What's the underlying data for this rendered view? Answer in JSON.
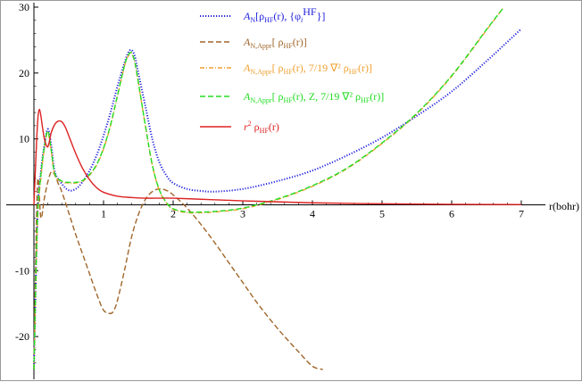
{
  "chart_data": {
    "type": "line",
    "title": "",
    "xlabel": "r(bohr)",
    "ylabel": "",
    "xlim": [
      0,
      7
    ],
    "ylim": [
      -25,
      30
    ],
    "xticks": [
      1,
      2,
      3,
      4,
      5,
      6,
      7
    ],
    "yticks": [
      -20,
      -10,
      10,
      20,
      30
    ],
    "grid": false,
    "legend_position": "top-center",
    "series": [
      {
        "name": "A_N[ρ_HF(r), {φ_i^HF}]",
        "legend_main": "A",
        "legend_sub": "N",
        "legend_rest": "[ρ",
        "legend_sub2": "HF",
        "legend_tail": "(r), {φ",
        "legend_tail2": "i",
        "legend_sup": "HF",
        "legend_end": "}]",
        "color": "#2222dd",
        "dash": "dotted",
        "x": [
          0.0,
          0.05,
          0.1,
          0.15,
          0.2,
          0.25,
          0.3,
          0.4,
          0.5,
          0.6,
          0.7,
          0.8,
          0.9,
          1.0,
          1.1,
          1.2,
          1.3,
          1.35,
          1.4,
          1.45,
          1.5,
          1.6,
          1.7,
          1.8,
          1.9,
          2.0,
          2.2,
          2.4,
          2.6,
          3.0,
          3.5,
          4.0,
          4.5,
          5.0,
          5.5,
          6.0,
          6.5,
          7.0
        ],
        "y": [
          -25,
          -2,
          5,
          9,
          11.5,
          9,
          5,
          3.2,
          2.2,
          2.4,
          3.5,
          5.2,
          7.5,
          10.5,
          14,
          18,
          21.5,
          23,
          23.5,
          22.5,
          20,
          15,
          10,
          6.5,
          4.5,
          3.3,
          2.4,
          2.1,
          2.0,
          2.4,
          3.6,
          5.2,
          7.5,
          10.2,
          13.5,
          17.2,
          21.8,
          26.7
        ]
      },
      {
        "name": "A_N,Appr[ρ_HF(r)]",
        "legend_main": "A",
        "legend_sub": "N,Appr",
        "legend_rest": "[ ρ",
        "legend_sub2": "HF",
        "legend_tail": "(r)]",
        "color": "#a0662a",
        "dash": "dashed",
        "x": [
          0.0,
          0.05,
          0.1,
          0.15,
          0.2,
          0.25,
          0.3,
          0.35,
          0.4,
          0.5,
          0.6,
          0.7,
          0.8,
          0.9,
          1.0,
          1.1,
          1.15,
          1.2,
          1.3,
          1.4,
          1.5,
          1.6,
          1.7,
          1.8,
          1.9,
          2.0,
          2.2,
          2.4,
          2.6,
          2.8,
          3.0,
          3.2,
          3.4,
          3.6,
          3.8,
          4.0,
          4.15
        ],
        "y": [
          -25,
          3,
          -2,
          1,
          3.5,
          5,
          4.5,
          3.2,
          2.0,
          -1.2,
          -4.5,
          -7.5,
          -10.5,
          -13.5,
          -16,
          -16.5,
          -16,
          -14.5,
          -10,
          -5,
          -1.5,
          0.8,
          2.0,
          2.4,
          2.2,
          1.5,
          -0.5,
          -3,
          -5.8,
          -8.8,
          -11.8,
          -14.8,
          -17.5,
          -20,
          -22.3,
          -24.5,
          -25
        ]
      },
      {
        "name": "A_N,Appr[ρ_HF(r), 7/19 ∇²ρ_HF(r)]",
        "legend_main": "A",
        "legend_sub": "N,Appr",
        "legend_rest": "[ ρ",
        "legend_sub2": "HF",
        "legend_tail": "(r),  7/19 ∇² ρ",
        "legend_sub3": "HF",
        "legend_end": "(r)]",
        "color": "#f0a030",
        "dash": "dash-dot",
        "x": [
          0.0,
          0.05,
          0.1,
          0.15,
          0.2,
          0.25,
          0.3,
          0.4,
          0.5,
          0.6,
          0.7,
          0.8,
          0.9,
          1.0,
          1.1,
          1.2,
          1.3,
          1.35,
          1.4,
          1.45,
          1.5,
          1.6,
          1.7,
          1.8,
          1.9,
          2.0,
          2.2,
          2.4,
          2.6,
          3.0,
          3.5,
          4.0,
          4.5,
          5.0,
          5.5,
          6.0,
          6.5,
          6.75
        ],
        "y": [
          -25,
          -3,
          4,
          8.5,
          11,
          8,
          4.5,
          3.5,
          3.3,
          3.3,
          3.6,
          4.5,
          6,
          8.5,
          12,
          16.5,
          21,
          22.5,
          23,
          21.5,
          18.5,
          12,
          6,
          2.2,
          0.3,
          -0.7,
          -1.2,
          -1.2,
          -1.1,
          -0.6,
          0.8,
          2.8,
          5.5,
          9.3,
          13.8,
          19.5,
          26.5,
          30
        ]
      },
      {
        "name": "A_N,Appr[ρ_HF(r), Z, 7/19 ∇²ρ_HF(r)]",
        "legend_main": "A",
        "legend_sub": "N,Appr",
        "legend_rest": "[ ρ",
        "legend_sub2": "HF",
        "legend_tail": "(r),  Z,  7/19 ∇² ρ",
        "legend_sub3": "HF",
        "legend_end": "(r)]",
        "color": "#22dd22",
        "dash": "dashed",
        "x": [
          0.0,
          0.05,
          0.1,
          0.15,
          0.2,
          0.25,
          0.3,
          0.4,
          0.5,
          0.6,
          0.7,
          0.8,
          0.9,
          1.0,
          1.1,
          1.2,
          1.3,
          1.35,
          1.4,
          1.45,
          1.5,
          1.6,
          1.7,
          1.8,
          1.9,
          2.0,
          2.2,
          2.4,
          2.6,
          3.0,
          3.5,
          4.0,
          4.5,
          5.0,
          5.5,
          6.0,
          6.5,
          6.75
        ],
        "y": [
          -25,
          -2.5,
          4.5,
          8.8,
          11.2,
          8.2,
          4.7,
          3.6,
          3.4,
          3.4,
          3.7,
          4.6,
          6.1,
          8.6,
          12.1,
          16.6,
          21.1,
          22.6,
          23.1,
          21.6,
          18.6,
          12.1,
          6.1,
          2.3,
          0.4,
          -0.6,
          -1.1,
          -1.1,
          -1.0,
          -0.5,
          0.9,
          2.9,
          5.6,
          9.4,
          13.9,
          19.6,
          26.6,
          30
        ]
      },
      {
        "name": "r² ρ_HF(r)",
        "legend_main": "r",
        "legend_sup": "2",
        "legend_rest": " ρ",
        "legend_sub2": "HF",
        "legend_tail": "(r)",
        "color": "#dd2222",
        "dash": "solid",
        "x": [
          0.0,
          0.02,
          0.04,
          0.06,
          0.08,
          0.1,
          0.12,
          0.15,
          0.18,
          0.2,
          0.22,
          0.25,
          0.3,
          0.35,
          0.4,
          0.45,
          0.5,
          0.6,
          0.7,
          0.8,
          0.9,
          1.0,
          1.2,
          1.4,
          1.6,
          1.8,
          2.0,
          2.5,
          3.0,
          3.5,
          4.0,
          5.0,
          6.0,
          7.0
        ],
        "y": [
          0,
          5,
          10,
          13.5,
          14.5,
          13.5,
          12,
          10,
          9,
          8.8,
          9.5,
          11,
          12.2,
          12.7,
          12.6,
          11.8,
          10.5,
          7.8,
          5.5,
          3.8,
          2.6,
          1.9,
          1.3,
          1.1,
          1.0,
          1.0,
          1.0,
          0.8,
          0.6,
          0.45,
          0.3,
          0.15,
          0.07,
          0.03
        ]
      }
    ]
  }
}
